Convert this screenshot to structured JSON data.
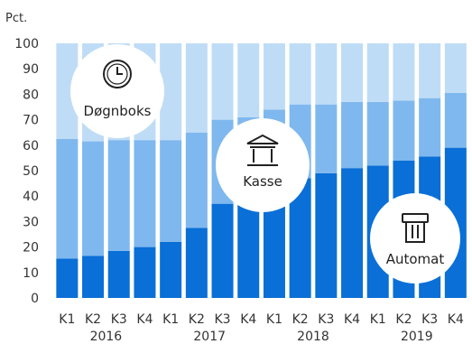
{
  "chart_data": {
    "type": "bar",
    "stacked": true,
    "ylabel": "Pct.",
    "ylim": [
      0,
      100
    ],
    "yticks": [
      0,
      10,
      20,
      30,
      40,
      50,
      60,
      70,
      80,
      90,
      100
    ],
    "grid": false,
    "categories": [
      "K1",
      "K2",
      "K3",
      "K4",
      "K1",
      "K2",
      "K3",
      "K4",
      "K1",
      "K2",
      "K3",
      "K4",
      "K1",
      "K2",
      "K3",
      "K4"
    ],
    "year_labels": [
      "2016",
      "2017",
      "2018",
      "2019"
    ],
    "series": [
      {
        "name": "Automat",
        "color": "#0a6fd6",
        "values": [
          15.5,
          16.5,
          18.5,
          20,
          22,
          27.5,
          37,
          44,
          46,
          47,
          49,
          51,
          52,
          54,
          55.5,
          59
        ]
      },
      {
        "name": "Kasse",
        "color": "#7fb8ee",
        "values": [
          47,
          45,
          43.5,
          42,
          40,
          37.5,
          33,
          27,
          28,
          29,
          27,
          26,
          25,
          23.5,
          23,
          21.5
        ]
      },
      {
        "name": "Døgnboks",
        "color": "#bfdcf6",
        "values": [
          37.5,
          38.5,
          38,
          38,
          38,
          35,
          30,
          29,
          26,
          24,
          24,
          23,
          23,
          22.5,
          21.5,
          19.5
        ]
      }
    ],
    "annotations": [
      {
        "label": "Døgnboks",
        "icon": "clock-icon"
      },
      {
        "label": "Kasse",
        "icon": "bank-icon"
      },
      {
        "label": "Automat",
        "icon": "atm-icon"
      }
    ]
  }
}
